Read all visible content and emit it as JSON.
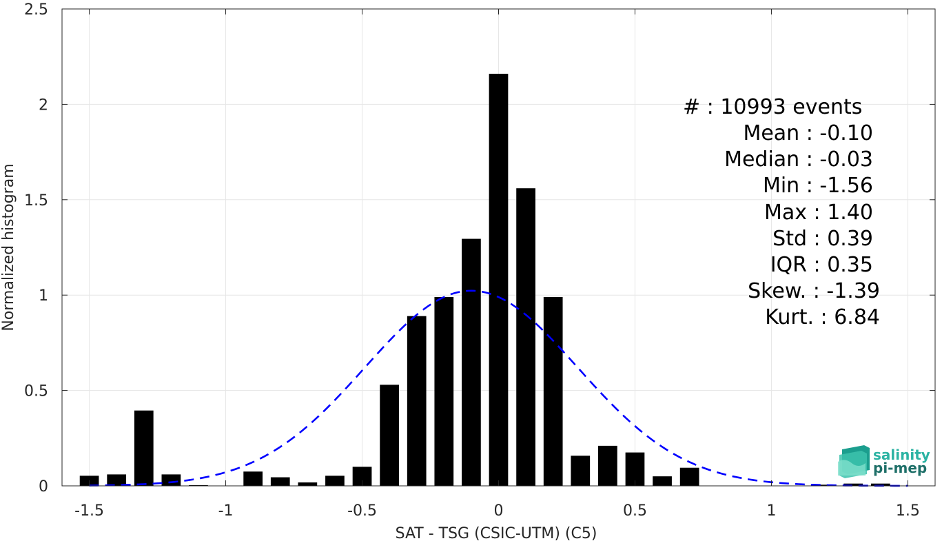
{
  "chart_data": {
    "type": "bar",
    "xlabel": "SAT - TSG (CSIC-UTM) (C5)",
    "ylabel": "Normalized histogram",
    "xlim": [
      -1.6,
      1.6
    ],
    "ylim": [
      0,
      2.5
    ],
    "xticks": [
      -1.5,
      -1,
      -0.5,
      0,
      0.5,
      1,
      1.5
    ],
    "xtick_labels": [
      "-1.5",
      "-1",
      "-0.5",
      "0",
      "0.5",
      "1",
      "1.5"
    ],
    "yticks": [
      0,
      0.5,
      1,
      1.5,
      2,
      2.5
    ],
    "ytick_labels": [
      "0",
      "0.5",
      "1",
      "1.5",
      "2",
      "2.5"
    ],
    "grid": true,
    "bar_width": 0.07,
    "bar_color": "#000000",
    "bars": [
      {
        "x": -1.5,
        "y": 0.053
      },
      {
        "x": -1.4,
        "y": 0.06
      },
      {
        "x": -1.3,
        "y": 0.395
      },
      {
        "x": -1.2,
        "y": 0.06
      },
      {
        "x": -1.1,
        "y": 0.004
      },
      {
        "x": -0.9,
        "y": 0.075
      },
      {
        "x": -0.8,
        "y": 0.045
      },
      {
        "x": -0.7,
        "y": 0.018
      },
      {
        "x": -0.6,
        "y": 0.053
      },
      {
        "x": -0.5,
        "y": 0.1
      },
      {
        "x": -0.4,
        "y": 0.53
      },
      {
        "x": -0.3,
        "y": 0.89
      },
      {
        "x": -0.2,
        "y": 0.99
      },
      {
        "x": -0.1,
        "y": 1.295
      },
      {
        "x": 0.0,
        "y": 2.16
      },
      {
        "x": 0.1,
        "y": 1.56
      },
      {
        "x": 0.2,
        "y": 0.99
      },
      {
        "x": 0.3,
        "y": 0.158
      },
      {
        "x": 0.4,
        "y": 0.21
      },
      {
        "x": 0.5,
        "y": 0.175
      },
      {
        "x": 0.6,
        "y": 0.05
      },
      {
        "x": 0.7,
        "y": 0.095
      },
      {
        "x": 1.2,
        "y": 0.006
      },
      {
        "x": 1.3,
        "y": 0.012
      },
      {
        "x": 1.4,
        "y": 0.012
      }
    ],
    "fit_curve": {
      "type": "normal-pdf",
      "mean": -0.1,
      "std": 0.39,
      "x_range": [
        -1.5,
        1.5
      ],
      "color": "#0000ff",
      "style": "dashed"
    },
    "annotations": {
      "count": "#  : 10993 events",
      "mean": "Mean : -0.10",
      "median": "Median : -0.03",
      "min": "Min : -1.56",
      "max": "Max : 1.40",
      "std": "Std : 0.39",
      "iqr": "IQR : 0.35",
      "skew": "Skew. : -1.39",
      "kurt": "Kurt. : 6.84"
    }
  },
  "logo": {
    "line1": "salinity",
    "line2": "pi-mep",
    "colors": {
      "line1": "#2bb3a3",
      "line2": "#1e6f68"
    }
  }
}
